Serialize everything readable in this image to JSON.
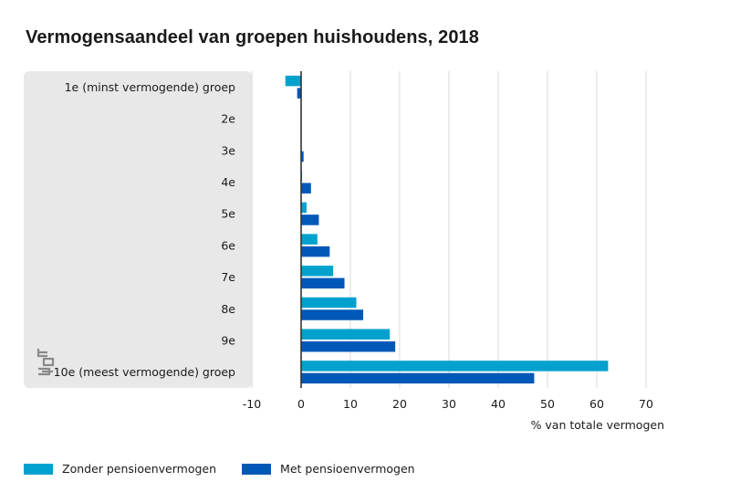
{
  "title": "Vermogensaandeel van groepen huishoudens, 2018",
  "colors": {
    "series1": "#00a1cd",
    "series2": "#0058b8",
    "panel": "#e8e8e8",
    "grid": "#d9d9d9",
    "zero": "#333333"
  },
  "logo": "cbs",
  "chart_data": {
    "type": "bar",
    "orientation": "horizontal",
    "categories": [
      "1e (minst vermogende) groep",
      "2e",
      "3e",
      "4e",
      "5e",
      "6e",
      "7e",
      "8e",
      "9e",
      "10e (meest vermogende) groep"
    ],
    "series": [
      {
        "name": "Zonder pensioenvermogen",
        "values": [
          -3.2,
          0,
          0,
          0.2,
          1.1,
          3.3,
          6.5,
          11.2,
          18.0,
          62.3
        ]
      },
      {
        "name": "Met pensioenvermogen",
        "values": [
          -0.8,
          0,
          0.5,
          2.0,
          3.6,
          5.8,
          8.8,
          12.6,
          19.1,
          47.3
        ]
      }
    ],
    "xlabel": "% van totale vermogen",
    "xlim": [
      -10,
      70
    ],
    "xticks": [
      "-10",
      "0",
      "10",
      "20",
      "30",
      "40",
      "50",
      "60",
      "70"
    ],
    "grid": true,
    "legend": "bottom-left"
  }
}
